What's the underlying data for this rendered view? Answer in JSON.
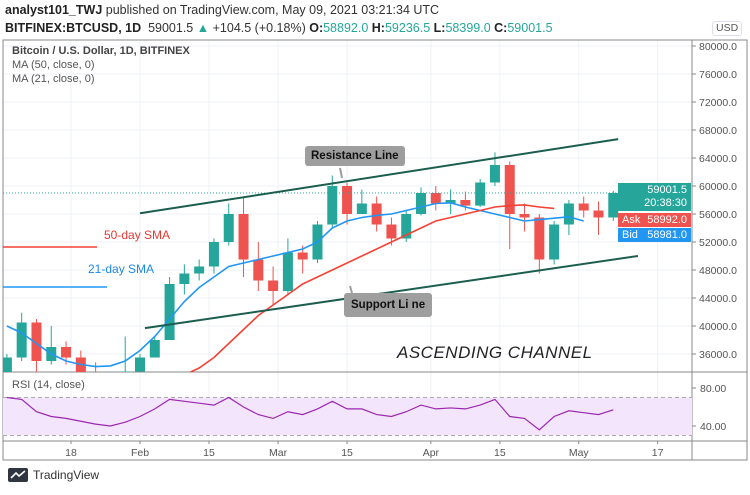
{
  "header": {
    "author": "analyst101_TWJ",
    "published_text": "published on TradingView.com, May 09, 2021 03:21:34 UTC",
    "symbol": "BITFINEX:BTCUSD, 1D",
    "last": "59001.5",
    "arrow": "▲",
    "change": "+104.5 (+0.18%)",
    "o_label": "O:",
    "o": "58892.0",
    "h_label": "H:",
    "h": "59236.5",
    "l_label": "L:",
    "l": "58399.0",
    "c_label": "C:",
    "c": "59001.5"
  },
  "legend": {
    "title": "Bitcoin / U.S. Dollar, 1D, BITFINEX",
    "ma50": "MA (50, close, 0)",
    "ma21": "MA (21, close, 0)",
    "rsi": "RSI (14, close)"
  },
  "annotations": {
    "resistance": "Resistance  Line",
    "support": "Support Li ne",
    "channel": "ASCENDING CHANNEL",
    "sma50": "50-day SMA",
    "sma21": "21-day SMA"
  },
  "price_labels": {
    "last": "59001.5",
    "countdown": "20:38:30",
    "ask_label": "Ask",
    "ask": "58992.0",
    "bid_label": "Bid",
    "bid": "58981.0",
    "currency": "USD"
  },
  "colors": {
    "up": "#26a69a",
    "down": "#ef5350",
    "ma50": "#f44336",
    "ma21": "#2196f3",
    "trendline": "#1b5e4f",
    "rsi": "#9c27b0",
    "rsi_band": "#f3e5fc"
  },
  "footer": {
    "brand": "TradingView"
  },
  "chart_data": {
    "type": "candlestick",
    "price_ticks": [
      "36000.0",
      "40000.0",
      "44000.0",
      "48000.0",
      "52000.0",
      "56000.0",
      "60000.0",
      "64000.0",
      "68000.0",
      "72000.0",
      "76000.0",
      "80000.0"
    ],
    "rsi_ticks": [
      "40.00",
      "80.00"
    ],
    "time_ticks": [
      {
        "label": "18",
        "date": "2021-01-18"
      },
      {
        "label": "Feb",
        "date": "2021-02-01"
      },
      {
        "label": "15",
        "date": "2021-02-15"
      },
      {
        "label": "Mar",
        "date": "2021-03-01"
      },
      {
        "label": "15",
        "date": "2021-03-15"
      },
      {
        "label": "Apr",
        "date": "2021-04-01"
      },
      {
        "label": "15",
        "date": "2021-04-15"
      },
      {
        "label": "May",
        "date": "2021-05-01"
      },
      {
        "label": "17",
        "date": "2021-05-17"
      }
    ],
    "ylim": [
      33400,
      81000
    ],
    "xlim": [
      "2021-01-04",
      "2021-05-22"
    ],
    "candles": [
      [
        "2021-01-05",
        32000,
        36000,
        31500,
        35500
      ],
      [
        "2021-01-08",
        35500,
        41900,
        35000,
        40500
      ],
      [
        "2021-01-11",
        40500,
        41000,
        32000,
        35000
      ],
      [
        "2021-01-14",
        35000,
        40000,
        34500,
        37000
      ],
      [
        "2021-01-17",
        37000,
        37800,
        34500,
        35500
      ],
      [
        "2021-01-20",
        35500,
        36500,
        30500,
        32500
      ],
      [
        "2021-01-23",
        32500,
        34800,
        31800,
        32300
      ],
      [
        "2021-01-26",
        32300,
        33500,
        29300,
        33000
      ],
      [
        "2021-01-29",
        33000,
        38500,
        32000,
        33500
      ],
      [
        "2021-02-01",
        33500,
        36000,
        33000,
        35500
      ],
      [
        "2021-02-04",
        35500,
        38500,
        35500,
        38000
      ],
      [
        "2021-02-07",
        38000,
        47000,
        38000,
        46000
      ],
      [
        "2021-02-10",
        46000,
        48800,
        44500,
        47500
      ],
      [
        "2021-02-13",
        47500,
        49500,
        46500,
        48500
      ],
      [
        "2021-02-16",
        48500,
        52500,
        47500,
        52000
      ],
      [
        "2021-02-19",
        52000,
        57500,
        51500,
        56000
      ],
      [
        "2021-02-22",
        56000,
        58300,
        47000,
        49500
      ],
      [
        "2021-02-25",
        49500,
        52000,
        45000,
        46500
      ],
      [
        "2021-02-28",
        46500,
        48500,
        43000,
        45000
      ],
      [
        "2021-03-03",
        45000,
        52500,
        44500,
        50500
      ],
      [
        "2021-03-06",
        50500,
        51500,
        47500,
        49500
      ],
      [
        "2021-03-09",
        49500,
        55000,
        49000,
        54500
      ],
      [
        "2021-03-12",
        54500,
        61500,
        54000,
        60000
      ],
      [
        "2021-03-15",
        60000,
        60500,
        54500,
        56000
      ],
      [
        "2021-03-18",
        56000,
        59500,
        56000,
        57500
      ],
      [
        "2021-03-21",
        57500,
        58500,
        53500,
        54500
      ],
      [
        "2021-03-24",
        54500,
        55500,
        51500,
        52500
      ],
      [
        "2021-03-27",
        52500,
        56500,
        52000,
        56000
      ],
      [
        "2021-03-30",
        56000,
        59800,
        55800,
        59000
      ],
      [
        "2021-04-02",
        59000,
        60000,
        56500,
        57500
      ],
      [
        "2021-04-05",
        57500,
        59500,
        56000,
        58000
      ],
      [
        "2021-04-08",
        58000,
        59200,
        56500,
        57200
      ],
      [
        "2021-04-11",
        57200,
        61000,
        57000,
        60500
      ],
      [
        "2021-04-14",
        60500,
        64800,
        60000,
        63000
      ],
      [
        "2021-04-17",
        63000,
        63500,
        51000,
        56000
      ],
      [
        "2021-04-20",
        56000,
        57500,
        53500,
        55500
      ],
      [
        "2021-04-23",
        55500,
        56000,
        47500,
        49500
      ],
      [
        "2021-04-26",
        49500,
        55000,
        48800,
        54500
      ],
      [
        "2021-04-29",
        54500,
        58000,
        53000,
        57500
      ],
      [
        "2021-05-02",
        57500,
        58500,
        55500,
        56500
      ],
      [
        "2021-05-05",
        56500,
        57800,
        53000,
        55500
      ],
      [
        "2021-05-08",
        55500,
        59300,
        55000,
        59001.5
      ]
    ],
    "ma21": [
      40000,
      39000,
      37500,
      36000,
      35000,
      34500,
      34200,
      34300,
      35000,
      36500,
      38500,
      41000,
      43500,
      45500,
      47000,
      48500,
      49000,
      49500,
      50000,
      50500,
      51000,
      52000,
      54000,
      55000,
      55500,
      55800,
      56000,
      56500,
      57000,
      57500,
      57600,
      57000,
      56500,
      56000,
      55500,
      55000,
      55200,
      55400,
      55600,
      55000
    ],
    "ma21_start": "2021-01-05",
    "ma50": [
      33000,
      34000,
      35500,
      37500,
      39500,
      41500,
      43000,
      44500,
      46000,
      47000,
      48000,
      49000,
      50000,
      51000,
      52000,
      53000,
      54000,
      55000,
      55500,
      56000,
      56500,
      57000,
      57200,
      57300,
      57000,
      56800
    ],
    "ma50_start": "2021-02-10",
    "rsi": [
      70,
      68,
      55,
      50,
      48,
      45,
      42,
      40,
      44,
      50,
      58,
      68,
      66,
      64,
      62,
      70,
      60,
      52,
      48,
      55,
      52,
      58,
      66,
      58,
      58,
      52,
      50,
      55,
      62,
      58,
      59,
      58,
      62,
      68,
      50,
      48,
      36,
      50,
      56,
      54,
      52,
      57
    ],
    "rsi_bands": [
      70,
      30
    ],
    "trendlines": [
      {
        "name": "resistance",
        "from": [
          "2021-02-01",
          56100
        ],
        "to": [
          "2021-05-09",
          66700
        ]
      },
      {
        "name": "support",
        "from": [
          "2021-02-02",
          39700
        ],
        "to": [
          "2021-05-13",
          50000
        ]
      }
    ]
  }
}
